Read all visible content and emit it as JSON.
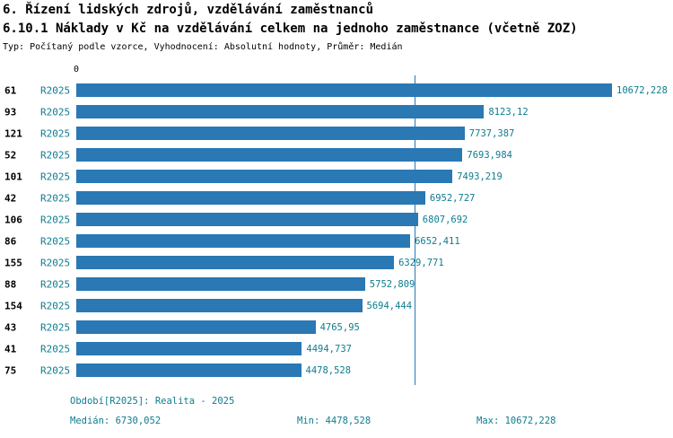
{
  "chart_data": {
    "type": "bar",
    "orientation": "horizontal",
    "title_line1": "6. Řízení lidských zdrojů, vzdělávání zaměstnanců",
    "title_line2": "6.10.1 Náklady v Kč na vzdělávání celkem na jednoho zaměstnance (včetně ZOZ)",
    "subtitle": "Typ: Počítaný podle vzorce, Vyhodnocení: Absolutní hodnoty, Průměr: Medián",
    "categories": [
      "61",
      "93",
      "121",
      "52",
      "101",
      "42",
      "106",
      "86",
      "155",
      "88",
      "154",
      "43",
      "41",
      "75"
    ],
    "series": [
      {
        "name": "R2025",
        "values": [
          10672.228,
          8123.12,
          7737.387,
          7693.984,
          7493.219,
          6952.727,
          6807.692,
          6652.411,
          6329.771,
          5752.809,
          5694.444,
          4765.95,
          4494.737,
          4478.528
        ]
      }
    ],
    "value_labels": [
      "10672,228",
      "8123,12",
      "7737,387",
      "7693,984",
      "7493,219",
      "6952,727",
      "6807,692",
      "6652,411",
      "6329,771",
      "5752,809",
      "5694,444",
      "4765,95",
      "4494,737",
      "4478,528"
    ],
    "median": 6730.052,
    "min": 4478.528,
    "max": 10672.228,
    "x_axis": {
      "zero_label": "0",
      "xlim": [
        0,
        11400
      ],
      "grid": false
    },
    "legend": {
      "position": "bottom",
      "period_label": "Období[R2025]: Realita - 2025"
    }
  },
  "footer": {
    "median_label": "Medián: 6730,052",
    "min_label": "Min: 4478,528",
    "max_label": "Max: 10672,228"
  },
  "colors": {
    "bar": "#2a78b4",
    "accent_text": "#0e7c8f",
    "median_line": "#2a78b4"
  }
}
